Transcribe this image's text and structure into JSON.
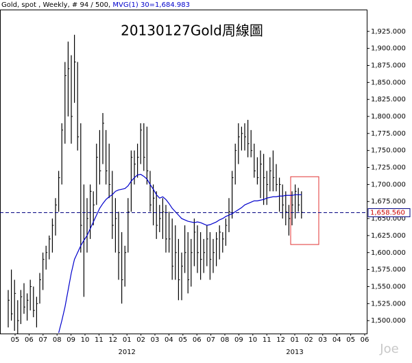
{
  "chart_data": {
    "type": "ohlc",
    "header": {
      "text": "Gold, spot , Weekly, # 94 / 500, ",
      "indicator": "MVG(1) 30=1,684.983"
    },
    "title": "20130127Gold周線圖",
    "watermark": "Joe",
    "ylim": [
      1481,
      1956
    ],
    "yticks": [
      {
        "value": 1500,
        "label": "1,500.000"
      },
      {
        "value": 1525,
        "label": "1,525.000"
      },
      {
        "value": 1550,
        "label": "1,550.000"
      },
      {
        "value": 1575,
        "label": "1,575.000"
      },
      {
        "value": 1600,
        "label": "1,600.000"
      },
      {
        "value": 1625,
        "label": "1,625.000"
      },
      {
        "value": 1650,
        "label": "1,650.000"
      },
      {
        "value": 1675,
        "label": "1,675.000"
      },
      {
        "value": 1700,
        "label": "1,700.000"
      },
      {
        "value": 1725,
        "label": "1,725.000"
      },
      {
        "value": 1750,
        "label": "1,750.000"
      },
      {
        "value": 1775,
        "label": "1,775.000"
      },
      {
        "value": 1800,
        "label": "1,800.000"
      },
      {
        "value": 1825,
        "label": "1,825.000"
      },
      {
        "value": 1850,
        "label": "1,850.000"
      },
      {
        "value": 1875,
        "label": "1,875.000"
      },
      {
        "value": 1900,
        "label": "1,900.000"
      },
      {
        "value": 1925,
        "label": "1,925.000"
      }
    ],
    "x_labels": [
      "05",
      "06",
      "07",
      "08",
      "09",
      "10",
      "11",
      "12",
      "01",
      "02",
      "03",
      "04",
      "05",
      "06",
      "07",
      "08",
      "09",
      "10",
      "11",
      "12",
      "01",
      "02",
      "03",
      "04",
      "05",
      "06"
    ],
    "years": [
      "2012",
      "2013"
    ],
    "bar_color": "#000000",
    "high": [
      1545,
      1575,
      1560,
      1530,
      1545,
      1555,
      1540,
      1560,
      1550,
      1535,
      1570,
      1600,
      1610,
      1625,
      1650,
      1680,
      1720,
      1790,
      1880,
      1910,
      1890,
      1920,
      1880,
      1790,
      1700,
      1680,
      1700,
      1690,
      1760,
      1780,
      1805,
      1780,
      1760,
      1720,
      1680,
      1660,
      1630,
      1610,
      1680,
      1750,
      1750,
      1760,
      1790,
      1790,
      1785,
      1720,
      1700,
      1690,
      1670,
      1680,
      1670,
      1660,
      1650,
      1640,
      1620,
      1600,
      1640,
      1630,
      1620,
      1650,
      1640,
      1630,
      1620,
      1640,
      1630,
      1620,
      1630,
      1640,
      1630,
      1650,
      1680,
      1720,
      1760,
      1790,
      1785,
      1790,
      1795,
      1780,
      1760,
      1740,
      1750,
      1745,
      1720,
      1740,
      1750,
      1730,
      1710,
      1700,
      1690,
      1670,
      1690,
      1700,
      1695,
      1690
    ],
    "low": [
      1490,
      1500,
      1485,
      1480,
      1495,
      1510,
      1500,
      1515,
      1505,
      1490,
      1525,
      1545,
      1575,
      1590,
      1600,
      1625,
      1660,
      1700,
      1760,
      1800,
      1760,
      1820,
      1750,
      1600,
      1535,
      1600,
      1620,
      1640,
      1670,
      1700,
      1730,
      1700,
      1680,
      1620,
      1600,
      1560,
      1525,
      1550,
      1600,
      1660,
      1700,
      1710,
      1730,
      1720,
      1700,
      1660,
      1640,
      1620,
      1630,
      1620,
      1600,
      1600,
      1560,
      1560,
      1530,
      1530,
      1570,
      1540,
      1550,
      1580,
      1570,
      1560,
      1570,
      1580,
      1560,
      1570,
      1580,
      1590,
      1600,
      1610,
      1630,
      1650,
      1700,
      1730,
      1750,
      1750,
      1740,
      1740,
      1710,
      1700,
      1680,
      1670,
      1670,
      1690,
      1690,
      1690,
      1660,
      1650,
      1640,
      1625,
      1640,
      1650,
      1660,
      1650
    ],
    "close": [
      1530,
      1510,
      1540,
      1500,
      1535,
      1520,
      1530,
      1550,
      1515,
      1525,
      1560,
      1590,
      1600,
      1620,
      1640,
      1670,
      1710,
      1780,
      1860,
      1870,
      1800,
      1880,
      1770,
      1640,
      1620,
      1650,
      1690,
      1670,
      1740,
      1720,
      1790,
      1720,
      1700,
      1640,
      1650,
      1600,
      1560,
      1600,
      1660,
      1740,
      1730,
      1740,
      1780,
      1740,
      1720,
      1670,
      1680,
      1640,
      1650,
      1660,
      1620,
      1620,
      1580,
      1600,
      1560,
      1580,
      1600,
      1560,
      1600,
      1630,
      1600,
      1590,
      1600,
      1620,
      1590,
      1600,
      1620,
      1630,
      1620,
      1640,
      1660,
      1710,
      1750,
      1770,
      1775,
      1770,
      1760,
      1750,
      1720,
      1710,
      1730,
      1710,
      1700,
      1720,
      1710,
      1700,
      1700,
      1670,
      1660,
      1650,
      1670,
      1690,
      1670,
      1659
    ],
    "ma": {
      "color": "#0000cc",
      "values": [
        null,
        null,
        null,
        null,
        null,
        null,
        null,
        null,
        null,
        null,
        null,
        null,
        null,
        null,
        null,
        null,
        1482,
        1500,
        1520,
        1545,
        1570,
        1590,
        1600,
        1610,
        1618,
        1625,
        1635,
        1645,
        1655,
        1665,
        1672,
        1678,
        1682,
        1685,
        1690,
        1692,
        1693,
        1694,
        1698,
        1705,
        1710,
        1714,
        1715,
        1712,
        1708,
        1700,
        1693,
        1685,
        1680,
        1682,
        1678,
        1672,
        1665,
        1660,
        1655,
        1650,
        1648,
        1646,
        1645,
        1644,
        1645,
        1644,
        1642,
        1640,
        1641,
        1643,
        1645,
        1648,
        1650,
        1653,
        1655,
        1657,
        1660,
        1663,
        1666,
        1670,
        1672,
        1674,
        1676,
        1676,
        1677,
        1678,
        1680,
        1681,
        1682,
        1682,
        1683,
        1683,
        1684,
        1684,
        1684,
        1685,
        1685,
        1685
      ]
    },
    "last": {
      "value": 1658.56,
      "label": "1,658.560"
    },
    "last_color": "#000080"
  }
}
